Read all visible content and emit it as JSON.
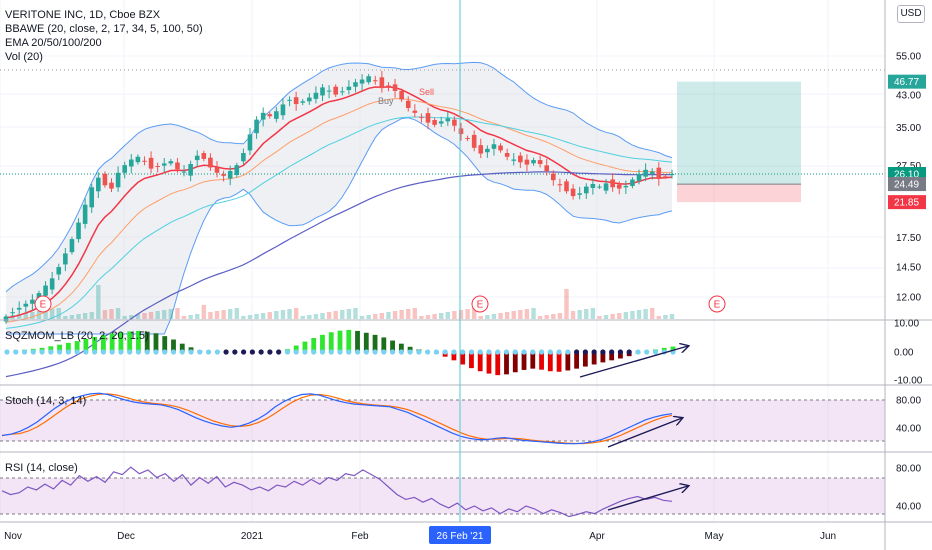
{
  "legend": {
    "symbol": "VERITONE INC, 1D, Cboe BZX",
    "bbawe": "BBAWE (20, close, 2, 17, 34, 5, 100, 50)",
    "ema": "EMA 20/50/100/200",
    "vol": "Vol (20)"
  },
  "currency": "USD",
  "panes": {
    "sqzmom": "SQZMOM_LB (20, 2, 20, 1.5)",
    "stoch": "Stoch (14, 3, 14)",
    "rsi": "RSI (14, close)"
  },
  "chart_data": {
    "type": "candlestick",
    "price_axis": {
      "scale": "log",
      "ticks": [
        "55.00",
        "43.00",
        "35.00",
        "27.50",
        "17.50",
        "14.50",
        "12.00"
      ]
    },
    "price_badges": [
      {
        "label": "46.77",
        "value": 46.77,
        "color": "#26a69a"
      },
      {
        "label": "26.10",
        "value": 26.1,
        "color": "#089981"
      },
      {
        "label": "24.49",
        "value": 24.49,
        "color": "#787b86"
      },
      {
        "label": "21.85",
        "value": 21.85,
        "color": "#f23645"
      }
    ],
    "x_ticks": [
      "Nov",
      "Dec",
      "2021",
      "Feb",
      "26 Feb '21",
      "Apr",
      "May",
      "Jun"
    ],
    "crosshair_label": "26 Feb '21",
    "annotations": [
      "Buy",
      "Sell"
    ],
    "earnings_markers": [
      "E",
      "E",
      "E"
    ],
    "position": {
      "entry": 24.49,
      "target": 46.77,
      "stop": 21.85
    },
    "close_series": [
      10.6,
      10.9,
      11.2,
      11.5,
      11.8,
      12.3,
      12.9,
      13.5,
      14.5,
      15.8,
      17.3,
      19.2,
      21.5,
      24.0,
      25.5,
      24.3,
      23.8,
      26.3,
      27.6,
      28.6,
      29.1,
      28.2,
      27.0,
      27.3,
      27.9,
      28.3,
      26.9,
      26.5,
      27.8,
      29.3,
      28.7,
      27.2,
      26.3,
      25.8,
      26.6,
      27.6,
      29.8,
      33.5,
      36.8,
      38.4,
      37.6,
      38.8,
      40.5,
      41.7,
      40.6,
      41.3,
      42.3,
      43.6,
      45.1,
      44.2,
      43.1,
      44.0,
      45.3,
      46.6,
      47.4,
      48.4,
      46.9,
      44.9,
      45.6,
      44.1,
      41.8,
      39.6,
      38.4,
      37.4,
      36.1,
      35.6,
      36.4,
      37.1,
      35.4,
      33.6,
      32.6,
      30.8,
      29.7,
      30.6,
      31.5,
      30.3,
      29.1,
      28.6,
      28.1,
      27.7,
      28.5,
      27.8,
      26.6,
      25.1,
      24.3,
      23.4,
      22.7,
      23.1,
      24.1,
      24.5,
      24.1,
      24.6,
      24.0,
      23.8,
      24.2,
      25.2,
      26.1,
      26.8,
      26.5,
      25.3,
      25.7,
      26.1
    ],
    "stoch_ticks": [
      "80.00",
      "40.00"
    ],
    "rsi_ticks": [
      "80.00",
      "40.00"
    ],
    "sqz_ticks": [
      "10.00",
      "0.00",
      "-10.00"
    ],
    "stoch_series": [
      28,
      30,
      34,
      40,
      48,
      58,
      68,
      76,
      82,
      86,
      89,
      90,
      88,
      84,
      80,
      77,
      75,
      74,
      73,
      70,
      66,
      60,
      54,
      49,
      45,
      42,
      40,
      42,
      46,
      52,
      60,
      70,
      78,
      84,
      88,
      89,
      87,
      83,
      79,
      76,
      74,
      73,
      72,
      71,
      70,
      66,
      62,
      56,
      50,
      44,
      38,
      32,
      27,
      24,
      22,
      22,
      24,
      25,
      23,
      21,
      20,
      19,
      18,
      17,
      16,
      16,
      17,
      19,
      22,
      27,
      33,
      39,
      45,
      51,
      55,
      58,
      60
    ],
    "rsi_series": [
      56,
      52,
      54,
      60,
      57,
      63,
      58,
      67,
      62,
      72,
      66,
      71,
      65,
      76,
      73,
      81,
      74,
      78,
      70,
      74,
      66,
      73,
      62,
      70,
      64,
      71,
      60,
      65,
      62,
      57,
      60,
      56,
      62,
      60,
      66,
      62,
      68,
      63,
      70,
      67,
      74,
      72,
      78,
      73,
      68,
      60,
      52,
      47,
      49,
      44,
      48,
      42,
      38,
      43,
      36,
      40,
      35,
      38,
      32,
      37,
      34,
      40,
      37,
      32,
      36,
      33,
      29,
      31,
      34,
      32,
      37,
      41,
      45,
      48,
      50,
      47,
      49,
      46,
      45
    ],
    "sqz_series": [
      0.4,
      0.6,
      0.9,
      1.2,
      1.6,
      2.2,
      2.8,
      3.5,
      4.2,
      5.0,
      5.8,
      6.5,
      7.1,
      7.6,
      7.9,
      8.1,
      7.8,
      7.2,
      6.1,
      4.8,
      3.2,
      1.8,
      0.6,
      0.3,
      0.2,
      0.1,
      -0.2,
      -0.4,
      -0.6,
      -0.5,
      -0.3,
      0.2,
      1.1,
      2.5,
      4.0,
      5.4,
      6.6,
      7.6,
      8.2,
      8.5,
      8.1,
      7.4,
      6.6,
      5.6,
      4.4,
      3.2,
      2.0,
      1.0,
      0.3,
      -0.6,
      -1.8,
      -3.2,
      -4.8,
      -6.2,
      -7.4,
      -8.3,
      -8.9,
      -8.6,
      -7.8,
      -6.9,
      -6.4,
      -6.8,
      -7.4,
      -7.6,
      -7.1,
      -6.4,
      -5.6,
      -4.8,
      -4.0,
      -3.2,
      -2.5,
      -1.6,
      -0.6,
      0.3,
      1.0,
      1.6,
      2.1
    ]
  }
}
